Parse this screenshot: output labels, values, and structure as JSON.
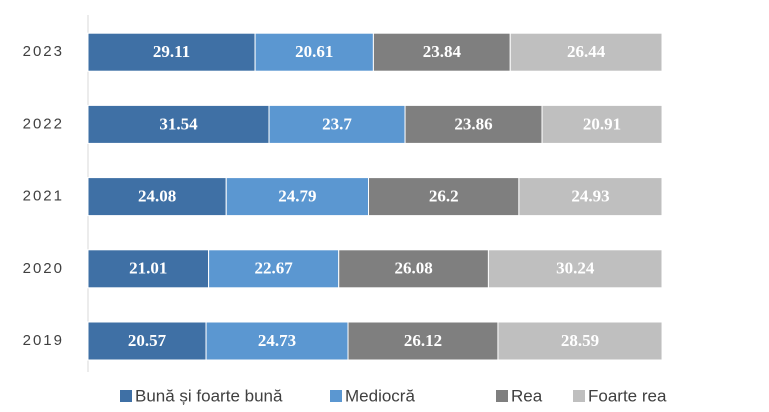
{
  "chart_data": {
    "type": "stacked-bar-horizontal",
    "categories": [
      "2019",
      "2020",
      "2021",
      "2022",
      "2023"
    ],
    "series": [
      {
        "name": "Bună și foarte bună",
        "color": "#3f70a5",
        "values": [
          20.57,
          21.01,
          24.08,
          31.54,
          29.11
        ]
      },
      {
        "name": "Mediocră",
        "color": "#5b97d1",
        "values": [
          24.73,
          22.67,
          24.79,
          23.7,
          20.61
        ]
      },
      {
        "name": "Rea",
        "color": "#7f7f7f",
        "values": [
          26.12,
          26.08,
          26.2,
          23.86,
          23.84
        ]
      },
      {
        "name": "Foarte rea",
        "color": "#bfbfbf",
        "values": [
          28.59,
          30.24,
          24.93,
          20.91,
          26.44
        ]
      }
    ],
    "legend": "bottom"
  }
}
